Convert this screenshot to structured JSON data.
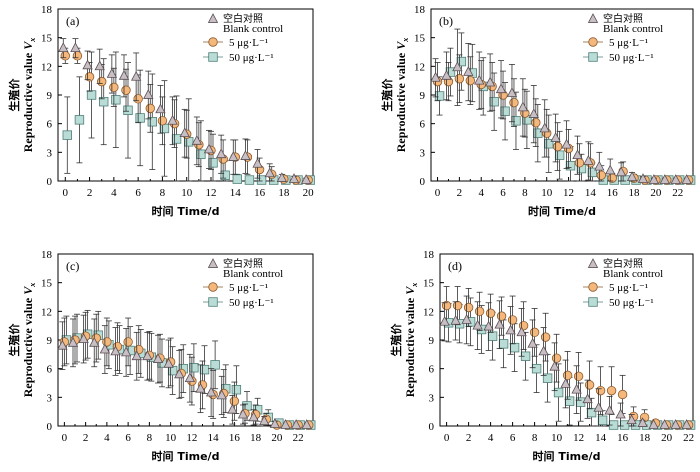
{
  "chart_data": [
    {
      "type": "scatter",
      "panel": "(a)",
      "x": [
        0,
        1,
        2,
        3,
        4,
        5,
        6,
        7,
        8,
        9,
        10,
        11,
        12,
        13,
        14,
        15,
        16,
        17,
        18,
        19,
        20
      ],
      "xticks": [
        0,
        2,
        4,
        6,
        8,
        10,
        12,
        14,
        16,
        18,
        20
      ],
      "xlim": [
        -0.6,
        20.4
      ],
      "yticks": [
        0,
        3,
        6,
        9,
        12,
        15,
        18
      ],
      "ylim": [
        0,
        18
      ],
      "ylabel_cn": "生殖价",
      "ylabel_en": "Reproductive value",
      "ylabel_sub": "x",
      "ylabel_var": "V",
      "xlabel": "时间 Time/d",
      "legend": [
        "空白对照",
        "Blank control",
        "5 μg·L⁻¹",
        "50 μg·L⁻¹"
      ],
      "series": [
        {
          "name": "空白对照 Blank control",
          "marker": "triangle",
          "values": [
            13.9,
            13.9,
            12.1,
            12.0,
            11.2,
            11.0,
            10.9,
            9.0,
            7.5,
            6.3,
            5.0,
            4.2,
            3.3,
            2.8,
            2.5,
            2.6,
            1.8,
            0.8,
            0.3,
            0.2,
            0.1
          ],
          "err": [
            1.0,
            1.0,
            1.5,
            1.8,
            2.0,
            2.2,
            2.5,
            2.5,
            2.5,
            2.5,
            2.5,
            2.5,
            2.0,
            2.0,
            1.8,
            1.8,
            1.5,
            1.0,
            0.4,
            0.3,
            0.2
          ]
        },
        {
          "name": "5 μg·L⁻¹",
          "marker": "circle",
          "values": [
            13.1,
            13.1,
            10.9,
            10.4,
            9.8,
            9.5,
            8.6,
            7.6,
            6.3,
            6.0,
            4.9,
            3.8,
            3.2,
            2.3,
            2.5,
            2.5,
            1.2,
            0.7,
            0.2,
            0.1,
            0.1
          ],
          "err": [
            0.8,
            0.8,
            1.5,
            1.8,
            2.0,
            2.2,
            2.5,
            2.5,
            2.5,
            2.5,
            2.5,
            2.3,
            2.0,
            2.0,
            1.8,
            1.8,
            1.2,
            0.8,
            0.3,
            0.2,
            0.1
          ]
        },
        {
          "name": "50 μg·L⁻¹",
          "marker": "square",
          "values": [
            4.8,
            6.4,
            9.0,
            8.3,
            8.5,
            7.4,
            6.6,
            6.2,
            5.5,
            4.4,
            4.1,
            2.8,
            1.9,
            0.6,
            0.2,
            0.1,
            0.1,
            0.1,
            0.1,
            0.1,
            0.1
          ],
          "err": [
            4.0,
            4.5,
            4.5,
            4.5,
            5.0,
            5.0,
            5.0,
            5.0,
            5.0,
            4.5,
            4.5,
            3.5,
            3.0,
            1.5,
            0.5,
            0.2,
            0.1,
            0.1,
            0.1,
            0.1,
            0.1
          ]
        }
      ]
    },
    {
      "type": "scatter",
      "panel": "(b)",
      "x": [
        0,
        1,
        2,
        3,
        4,
        5,
        6,
        7,
        8,
        9,
        10,
        11,
        12,
        13,
        14,
        15,
        16,
        17,
        18,
        19,
        20,
        21,
        22,
        23
      ],
      "xticks": [
        0,
        2,
        4,
        6,
        8,
        10,
        12,
        14,
        16,
        18,
        20,
        22
      ],
      "xlim": [
        -0.6,
        23.4
      ],
      "yticks": [
        0,
        3,
        6,
        9,
        12,
        15,
        18
      ],
      "ylim": [
        0,
        18
      ],
      "ylabel_cn": "生殖价",
      "ylabel_en": "Reproductive value",
      "ylabel_sub": "x",
      "ylabel_var": "V",
      "xlabel": "时间 Time/d",
      "legend": [
        "空白对照",
        "Blank control",
        "5 μg·L⁻¹",
        "50 μg·L⁻¹"
      ],
      "series": [
        {
          "name": "空白对照 Blank control",
          "marker": "triangle",
          "values": [
            10.8,
            11.0,
            11.9,
            11.4,
            10.5,
            10.3,
            9.6,
            9.2,
            7.7,
            7.0,
            5.5,
            4.5,
            3.8,
            2.7,
            2.1,
            1.5,
            1.1,
            0.9,
            0.4,
            0.2,
            0.1,
            0.1,
            0.1,
            0.1
          ],
          "err": [
            2.0,
            2.5,
            4.0,
            3.0,
            3.0,
            3.0,
            3.0,
            3.0,
            3.0,
            3.0,
            3.0,
            2.5,
            2.5,
            2.0,
            2.0,
            1.5,
            1.2,
            1.0,
            0.5,
            0.3,
            0.2,
            0.1,
            0.1,
            0.1
          ]
        },
        {
          "name": "5 μg·L⁻¹",
          "marker": "circle",
          "values": [
            10.4,
            10.4,
            10.7,
            10.5,
            10.1,
            9.9,
            9.0,
            8.2,
            7.1,
            6.1,
            5.0,
            3.6,
            3.4,
            1.9,
            1.9,
            0.6,
            0.3,
            1.0,
            0.3,
            0.1,
            0.1,
            0.1,
            0.1,
            0.1
          ],
          "err": [
            2.0,
            2.0,
            2.5,
            2.5,
            2.5,
            2.5,
            2.5,
            2.5,
            2.5,
            2.5,
            2.5,
            2.5,
            2.0,
            2.0,
            2.0,
            1.0,
            0.5,
            1.0,
            0.4,
            0.2,
            0.1,
            0.1,
            0.1,
            0.1
          ]
        },
        {
          "name": "50 μg·L⁻¹",
          "marker": "square",
          "values": [
            8.9,
            11.4,
            12.5,
            11.3,
            9.9,
            8.3,
            7.3,
            6.3,
            6.4,
            5.0,
            3.9,
            2.7,
            1.6,
            1.3,
            0.9,
            0.1,
            0.1,
            0.1,
            0.1,
            0.1,
            0.1,
            0.1,
            0.1,
            0.1
          ],
          "err": [
            2.0,
            2.5,
            3.0,
            3.0,
            3.0,
            3.0,
            3.0,
            3.0,
            3.0,
            3.0,
            3.0,
            2.5,
            2.0,
            1.5,
            1.0,
            0.2,
            0.1,
            0.1,
            0.1,
            0.1,
            0.1,
            0.1,
            0.1,
            0.1
          ]
        }
      ]
    },
    {
      "type": "scatter",
      "panel": "(c)",
      "x": [
        0,
        1,
        2,
        3,
        4,
        5,
        6,
        7,
        8,
        9,
        10,
        11,
        12,
        13,
        14,
        15,
        16,
        17,
        18,
        19,
        20,
        21,
        22,
        23
      ],
      "xticks": [
        0,
        2,
        4,
        6,
        8,
        10,
        12,
        14,
        16,
        18,
        20,
        22
      ],
      "xlim": [
        -0.6,
        23.4
      ],
      "yticks": [
        0,
        3,
        6,
        9,
        12,
        15,
        18
      ],
      "ylim": [
        0,
        18
      ],
      "ylabel_cn": "生殖价",
      "ylabel_en": "Reproductive value",
      "ylabel_sub": "x",
      "ylabel_var": "V",
      "xlabel": "时间 Time/d",
      "legend": [
        "空白对照",
        "Blank control",
        "5 μg·L⁻¹",
        "50 μg·L⁻¹"
      ],
      "series": [
        {
          "name": "空白对照 Blank control",
          "marker": "triangle",
          "values": [
            8.4,
            8.7,
            9.1,
            8.7,
            8.0,
            7.8,
            7.7,
            7.3,
            7.3,
            7.0,
            6.5,
            5.4,
            5.0,
            3.9,
            3.5,
            3.2,
            1.7,
            1.2,
            0.9,
            0.5,
            0.2,
            0.1,
            0.1,
            0.1
          ],
          "err": [
            2.5,
            2.5,
            2.5,
            2.5,
            2.5,
            2.5,
            2.5,
            2.5,
            2.5,
            2.5,
            2.5,
            2.5,
            2.5,
            2.5,
            2.5,
            2.0,
            1.5,
            1.0,
            0.8,
            0.5,
            0.3,
            0.1,
            0.1,
            0.1
          ]
        },
        {
          "name": "5 μg·L⁻¹",
          "marker": "circle",
          "values": [
            8.8,
            9.0,
            9.4,
            9.2,
            8.8,
            8.3,
            8.8,
            8.0,
            7.4,
            7.1,
            6.7,
            5.5,
            4.7,
            4.3,
            3.3,
            3.4,
            2.6,
            1.3,
            1.2,
            0.7,
            0.1,
            0.1,
            0.1,
            0.1
          ],
          "err": [
            2.5,
            2.5,
            2.5,
            2.5,
            2.5,
            2.5,
            2.5,
            2.5,
            2.5,
            2.5,
            2.5,
            2.5,
            2.5,
            2.5,
            2.5,
            2.5,
            2.0,
            1.0,
            1.0,
            0.6,
            0.2,
            0.1,
            0.1,
            0.1
          ]
        },
        {
          "name": "50 μg·L⁻¹",
          "marker": "square",
          "values": [
            9.0,
            9.2,
            9.6,
            9.5,
            8.5,
            8.0,
            7.9,
            7.6,
            7.2,
            6.6,
            5.8,
            6.0,
            6.1,
            5.9,
            6.4,
            3.9,
            3.8,
            2.1,
            1.7,
            0.9,
            0.3,
            0.1,
            0.1,
            0.1
          ],
          "err": [
            2.5,
            2.5,
            2.5,
            2.5,
            2.5,
            2.5,
            2.5,
            2.5,
            2.5,
            2.5,
            2.5,
            2.5,
            2.5,
            2.5,
            2.5,
            2.5,
            2.5,
            1.5,
            1.2,
            0.8,
            0.3,
            0.1,
            0.1,
            0.1
          ]
        }
      ]
    },
    {
      "type": "scatter",
      "panel": "(d)",
      "x": [
        0,
        1,
        2,
        3,
        4,
        5,
        6,
        7,
        8,
        9,
        10,
        11,
        12,
        13,
        14,
        15,
        16,
        17,
        18,
        19,
        20,
        21,
        22
      ],
      "xticks": [
        0,
        2,
        4,
        6,
        8,
        10,
        12,
        14,
        16,
        18,
        20,
        22
      ],
      "xlim": [
        -0.6,
        22.4
      ],
      "yticks": [
        0,
        3,
        6,
        9,
        12,
        15,
        18
      ],
      "ylim": [
        0,
        18
      ],
      "ylabel_cn": "生殖价",
      "ylabel_en": "Reproductive value",
      "ylabel_sub": "x",
      "ylabel_var": "V",
      "xlabel": "时间 Time/d",
      "legend": [
        "空白对照",
        "Blank control",
        "5 μg·L⁻¹",
        "50 μg·L⁻¹"
      ],
      "series": [
        {
          "name": "空白对照 Blank control",
          "marker": "triangle",
          "values": [
            10.9,
            11.0,
            11.1,
            10.5,
            10.4,
            10.6,
            10.0,
            9.8,
            8.6,
            7.8,
            6.2,
            4.4,
            3.8,
            2.8,
            1.9,
            1.6,
            1.2,
            0.6,
            0.3,
            0.1,
            0.1,
            0.1,
            0.1
          ],
          "err": [
            2.0,
            2.0,
            2.5,
            2.5,
            2.5,
            2.5,
            2.5,
            2.5,
            2.5,
            2.5,
            2.5,
            2.5,
            2.5,
            2.0,
            2.0,
            1.5,
            1.2,
            0.6,
            0.3,
            0.1,
            0.1,
            0.1,
            0.1
          ]
        },
        {
          "name": "5 μg·L⁻¹",
          "marker": "circle",
          "values": [
            12.6,
            12.6,
            12.4,
            12.0,
            11.8,
            11.5,
            11.1,
            10.5,
            9.8,
            9.3,
            7.1,
            5.3,
            5.2,
            4.3,
            3.7,
            3.7,
            3.3,
            1.0,
            0.9,
            0.3,
            0.1,
            0.1,
            0.1
          ],
          "err": [
            2.0,
            2.0,
            2.0,
            2.0,
            2.0,
            2.0,
            2.5,
            2.5,
            2.5,
            2.5,
            2.5,
            2.5,
            2.5,
            2.5,
            2.5,
            2.5,
            2.0,
            1.0,
            0.8,
            0.3,
            0.1,
            0.1,
            0.1
          ]
        },
        {
          "name": "50 μg·L⁻¹",
          "marker": "square",
          "values": [
            10.8,
            10.7,
            10.9,
            10.1,
            9.4,
            8.6,
            8.2,
            7.3,
            6.0,
            5.0,
            3.5,
            2.6,
            2.5,
            1.4,
            0.6,
            0.1,
            0.1,
            0.1,
            0.1,
            0.1,
            0.1,
            0.1,
            0.1
          ],
          "err": [
            2.0,
            2.0,
            2.5,
            2.5,
            2.5,
            2.5,
            2.5,
            2.5,
            2.5,
            2.5,
            3.0,
            2.5,
            2.0,
            1.5,
            1.0,
            0.2,
            0.1,
            0.1,
            0.1,
            0.1,
            0.1,
            0.1,
            0.1
          ]
        }
      ]
    }
  ],
  "colors": {
    "triangle_fill": "#c8bfc4",
    "triangle_stroke": "#5a4f55",
    "circle_fill": "#f4b77c",
    "circle_stroke": "#8a5a2e",
    "square_fill": "#b9ddd6",
    "square_stroke": "#4f7f78",
    "errorbar": "#333333",
    "axis": "#000000"
  }
}
